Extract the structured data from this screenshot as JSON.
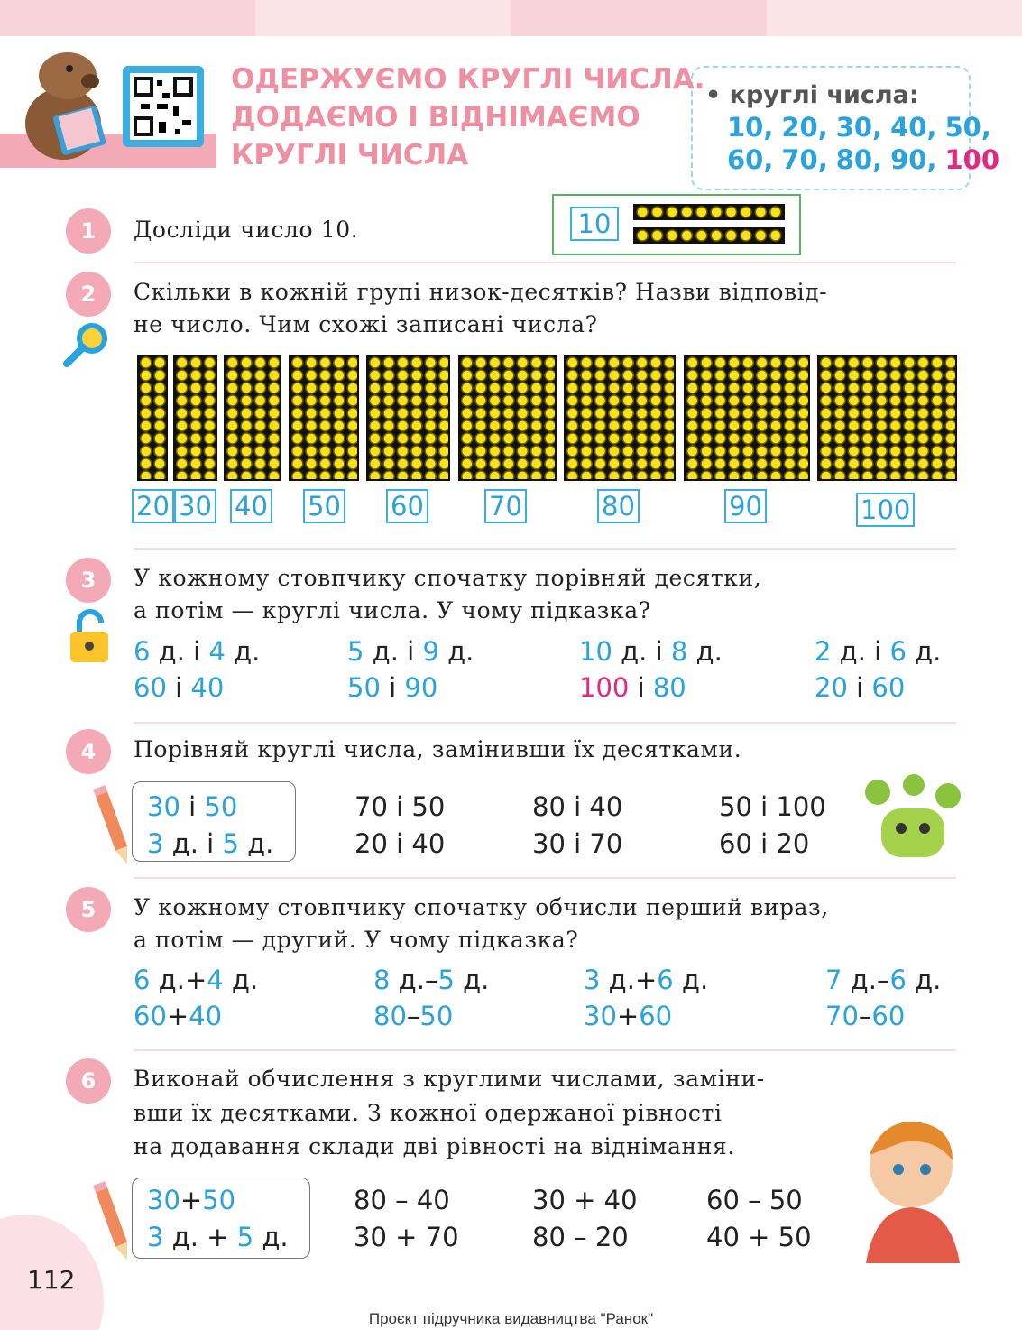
{
  "header": {
    "title": [
      "ОДЕРЖУЄМО КРУГЛІ ЧИСЛА.",
      "ДОДАЄМО І ВІДНІМАЄМО",
      "КРУГЛІ ЧИСЛА"
    ]
  },
  "note": {
    "label": "• круглі числа:",
    "items": [
      "10,",
      "20,",
      "30,",
      "40,",
      "50,",
      "60,",
      "70,",
      "80,",
      "90,",
      "100"
    ]
  },
  "tasks": [
    {
      "number": "1",
      "text": [
        "Досліди число 10."
      ],
      "figure": "10"
    },
    {
      "number": "2",
      "text": [
        "Скільки в кожній групі низок-десятків? Назви відповід-",
        "не число. Чим схожі записані числа?"
      ],
      "labels": [
        "20",
        "30",
        "40",
        "50",
        "60",
        "70",
        "80",
        "90",
        "100"
      ]
    },
    {
      "number": "3",
      "text": [
        "У кожному стовпчику спочатку порівняй десятки,",
        "а потім — круглі числа. У чому підказка?"
      ],
      "columns": [
        [
          [
            "6",
            " д. і ",
            "4",
            " д."
          ],
          [
            "60",
            " і ",
            "40"
          ]
        ],
        [
          [
            "5",
            " д. і ",
            "9",
            " д."
          ],
          [
            "50",
            " і ",
            "90"
          ]
        ],
        [
          [
            "10",
            " д. і ",
            "8",
            " д."
          ],
          [
            "100",
            " і ",
            "80"
          ]
        ],
        [
          [
            "2",
            " д. і ",
            "6",
            " д."
          ],
          [
            "20",
            " і ",
            "60"
          ]
        ]
      ]
    },
    {
      "number": "4",
      "text": [
        "Порівняй круглі числа, замінивши їх десятками."
      ],
      "example": [
        [
          "30",
          " і ",
          "50"
        ],
        [
          "3",
          " д. і ",
          "5",
          " д."
        ]
      ],
      "columns": [
        [
          "70 і 50",
          "20 і 40"
        ],
        [
          "80 і 40",
          "30 і 70"
        ],
        [
          "50 і 100",
          "60 і 20"
        ]
      ]
    },
    {
      "number": "5",
      "text": [
        "У кожному стовпчику спочатку обчисли перший вираз,",
        "а потім — другий. У чому підказка?"
      ],
      "columns": [
        [
          [
            "6",
            " д.+",
            "4",
            " д."
          ],
          [
            "60",
            "+",
            "40"
          ]
        ],
        [
          [
            "8",
            " д.–",
            "5",
            " д."
          ],
          [
            "80",
            "–",
            "50"
          ]
        ],
        [
          [
            "3",
            " д.+",
            "6",
            " д."
          ],
          [
            "30",
            "+",
            "60"
          ]
        ],
        [
          [
            "7",
            " д.–",
            "6",
            " д."
          ],
          [
            "70",
            "–",
            "60"
          ]
        ]
      ]
    },
    {
      "number": "6",
      "text": [
        "Виконай обчислення з круглими числами, заміни-",
        "вши їх десятками. З кожної одержаної рівності",
        "на додавання склади дві рівності на віднімання."
      ],
      "example": [
        [
          "30",
          "+",
          "50"
        ],
        [
          "3",
          " д. + ",
          "5",
          " д."
        ]
      ],
      "columns": [
        [
          "80 – 40",
          "30 + 70"
        ],
        [
          "30 + 40",
          "80 – 20"
        ],
        [
          "60 – 50",
          "40 + 50"
        ]
      ]
    }
  ],
  "page_number": "112",
  "footer": "Проєкт підручника видавництва \"Ранок\""
}
